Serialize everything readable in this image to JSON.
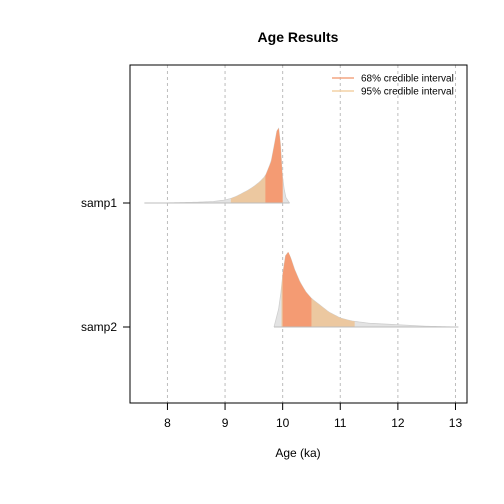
{
  "chart_data": {
    "type": "area",
    "title": "Age Results",
    "xlabel": "Age (ka)",
    "ylabel": "",
    "xlim": [
      7.35,
      13.2
    ],
    "x_ticks": [
      8,
      9,
      10,
      11,
      12,
      13
    ],
    "x_tick_labels": [
      "8",
      "9",
      "10",
      "11",
      "12",
      "13"
    ],
    "grid": "vertical dashed at x ticks",
    "legend_position": "top-right",
    "legend": [
      {
        "label": "68% credible interval",
        "color": "#f4a582"
      },
      {
        "label": "95% credible interval",
        "color": "#f4d2a6"
      }
    ],
    "colors": {
      "interval_68": "#f49b73",
      "interval_95": "#ecc8a0",
      "tail": "#e3e3e3",
      "grid": "#bdbdbd"
    },
    "series": [
      {
        "name": "samp1",
        "interval_68": [
          9.7,
          10.0
        ],
        "interval_95": [
          9.1,
          10.0
        ],
        "density": [
          [
            7.6,
            0
          ],
          [
            8.0,
            0.002
          ],
          [
            8.5,
            0.01
          ],
          [
            8.8,
            0.02
          ],
          [
            9.0,
            0.04
          ],
          [
            9.1,
            0.06
          ],
          [
            9.2,
            0.09
          ],
          [
            9.3,
            0.13
          ],
          [
            9.4,
            0.17
          ],
          [
            9.5,
            0.22
          ],
          [
            9.6,
            0.28
          ],
          [
            9.7,
            0.36
          ],
          [
            9.8,
            0.55
          ],
          [
            9.85,
            0.75
          ],
          [
            9.9,
            0.96
          ],
          [
            9.93,
            1.0
          ],
          [
            9.96,
            0.8
          ],
          [
            10.0,
            0.3
          ],
          [
            10.05,
            0.08
          ],
          [
            10.12,
            0
          ]
        ]
      },
      {
        "name": "samp2",
        "interval_68": [
          10.0,
          10.5
        ],
        "interval_95": [
          9.98,
          11.25
        ],
        "density": [
          [
            9.85,
            0
          ],
          [
            9.95,
            0.3
          ],
          [
            10.0,
            0.7
          ],
          [
            10.05,
            0.95
          ],
          [
            10.1,
            1.0
          ],
          [
            10.15,
            0.9
          ],
          [
            10.2,
            0.78
          ],
          [
            10.3,
            0.6
          ],
          [
            10.4,
            0.47
          ],
          [
            10.5,
            0.38
          ],
          [
            10.6,
            0.32
          ],
          [
            10.7,
            0.26
          ],
          [
            10.8,
            0.2
          ],
          [
            10.9,
            0.16
          ],
          [
            11.0,
            0.12
          ],
          [
            11.2,
            0.08
          ],
          [
            11.5,
            0.05
          ],
          [
            12.0,
            0.03
          ],
          [
            12.5,
            0.01
          ],
          [
            13.05,
            0
          ]
        ]
      }
    ]
  }
}
